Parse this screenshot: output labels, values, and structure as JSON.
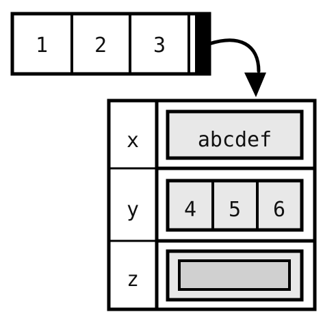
{
  "vector": {
    "cells": [
      "1",
      "2",
      "3"
    ]
  },
  "list": {
    "rows": [
      {
        "name": "x",
        "value_type": "string",
        "value": "abcdef"
      },
      {
        "name": "y",
        "value_type": "vector",
        "values": [
          "4",
          "5",
          "6"
        ]
      },
      {
        "name": "z",
        "value_type": "nested-empty",
        "value": ""
      }
    ]
  },
  "colors": {
    "stroke": "#000000",
    "cell_fill": "#ffffff",
    "value_fill": "#e8e8e8",
    "nested_fill": "#d0d0d0"
  }
}
